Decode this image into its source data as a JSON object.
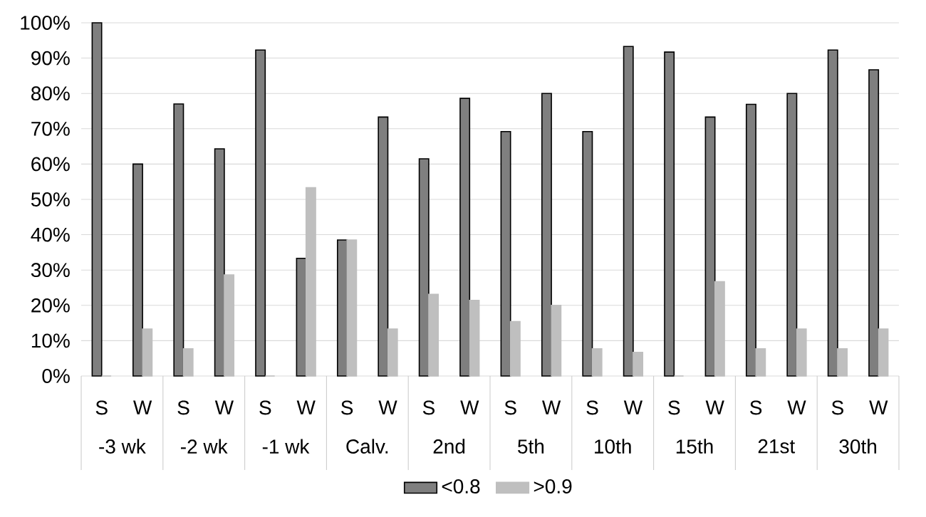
{
  "chart_data": {
    "type": "bar",
    "categories": [
      "S",
      "W",
      "S",
      "W",
      "S",
      "W",
      "S",
      "W",
      "S",
      "W",
      "S",
      "W",
      "S",
      "W",
      "S",
      "W",
      "S",
      "W",
      "S",
      "W"
    ],
    "annotations": [
      "-3 wk",
      "-2 wk",
      "-1 wk",
      "Calv.",
      "2nd",
      "5th",
      "10th",
      "15th",
      "21st",
      "30th"
    ],
    "series": [
      {
        "name": "<0.8",
        "color": "#7f7f7f",
        "values": [
          100,
          60,
          77,
          64.3,
          92.3,
          33.3,
          38.5,
          73.3,
          61.5,
          78.6,
          69.2,
          80,
          69.2,
          93.3,
          91.7,
          73.3,
          76.9,
          80,
          92.3,
          86.7
        ]
      },
      {
        "name": ">0.9",
        "color": "#bfbfbf",
        "values": [
          0,
          13.3,
          7.7,
          28.6,
          0,
          53.3,
          38.5,
          13.3,
          23.1,
          21.4,
          15.4,
          20,
          7.7,
          6.7,
          0,
          26.7,
          7.7,
          13.3,
          7.7,
          13.3
        ]
      }
    ],
    "ylim": [
      0,
      100
    ],
    "yticks": [
      {
        "value": 0,
        "label": "0%"
      },
      {
        "value": 10,
        "label": "10%"
      },
      {
        "value": 20,
        "label": "20%"
      },
      {
        "value": 30,
        "label": "30%"
      },
      {
        "value": 40,
        "label": "40%"
      },
      {
        "value": 50,
        "label": "50%"
      },
      {
        "value": 60,
        "label": "60%"
      },
      {
        "value": 70,
        "label": "70%"
      },
      {
        "value": 80,
        "label": "80%"
      },
      {
        "value": 90,
        "label": "90%"
      },
      {
        "value": 100,
        "label": "100%"
      }
    ],
    "grid": "y",
    "legend": "bottom"
  }
}
